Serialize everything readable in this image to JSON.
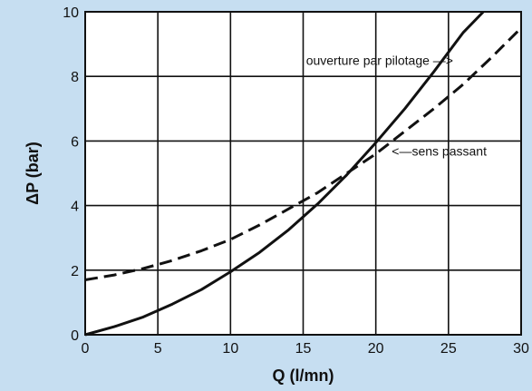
{
  "chart_data": {
    "type": "line",
    "xlabel": "Q (l/mn)",
    "ylabel": "ΔP (bar)",
    "xlim": [
      0,
      30
    ],
    "ylim": [
      0,
      10
    ],
    "x_ticks": [
      "0",
      "5",
      "10",
      "15",
      "20",
      "25",
      "30"
    ],
    "y_ticks": [
      "0",
      "2",
      "4",
      "6",
      "8",
      "10"
    ],
    "grid": true,
    "background_color": "#c6def1",
    "plot_background_color": "#ffffff",
    "series": [
      {
        "style": "solid",
        "color": "#111111",
        "x": [
          0,
          2,
          4,
          6,
          8,
          10,
          12,
          14,
          16,
          18,
          20,
          22,
          24,
          26,
          27.4
        ],
        "y": [
          0,
          0.25,
          0.55,
          0.95,
          1.4,
          1.95,
          2.55,
          3.25,
          4.05,
          4.95,
          5.95,
          7.0,
          8.15,
          9.35,
          10.0
        ]
      },
      {
        "style": "dashed",
        "color": "#111111",
        "x": [
          0,
          2,
          4,
          6,
          8,
          10,
          12,
          14,
          16,
          18,
          20,
          22,
          24,
          26,
          28,
          30
        ],
        "y": [
          1.7,
          1.85,
          2.05,
          2.3,
          2.6,
          2.95,
          3.4,
          3.9,
          4.4,
          5.0,
          5.6,
          6.3,
          7.0,
          7.75,
          8.6,
          9.5
        ]
      }
    ],
    "annotations": [
      {
        "text": "ouverture par pilotage —>",
        "x": 15.2,
        "y": 8.35
      },
      {
        "text": "<—sens passant",
        "x": 21.1,
        "y": 5.55
      }
    ]
  }
}
